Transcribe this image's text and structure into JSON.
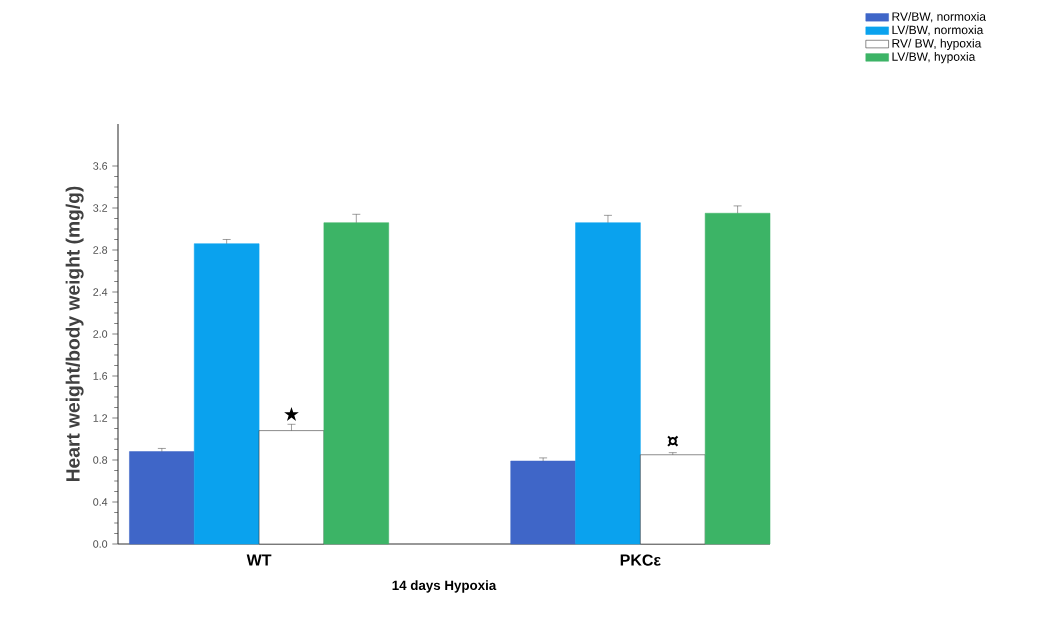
{
  "chart_data": {
    "type": "bar",
    "xlabel": "14 days Hypoxia",
    "ylabel": "Heart weight/body weight (mg/g)",
    "categories": [
      "WT",
      "PKCε"
    ],
    "series": [
      {
        "name": "RV/BW,  normoxia",
        "color": "#3f66c8",
        "values": [
          0.88,
          0.79
        ],
        "errors": [
          0.03,
          0.03
        ]
      },
      {
        "name": "LV/BW,  normoxia",
        "color": "#0aa2ee",
        "values": [
          2.86,
          3.06
        ],
        "errors": [
          0.04,
          0.07
        ]
      },
      {
        "name": "RV/ BW,  hypoxia",
        "color": "#ffffff",
        "values": [
          1.08,
          0.85
        ],
        "errors": [
          0.06,
          0.02
        ]
      },
      {
        "name": "LV/BW,  hypoxia",
        "color": "#3cb466",
        "values": [
          3.06,
          3.15
        ],
        "errors": [
          0.08,
          0.07
        ]
      }
    ],
    "ylim": [
      0,
      4.0
    ],
    "yticks": [
      {
        "value": 0,
        "label": "0.0"
      },
      {
        "value": 0.4,
        "label": "0.4"
      },
      {
        "value": 0.8,
        "label": "0.8"
      },
      {
        "value": 1.2,
        "label": "1.2"
      },
      {
        "value": 1.6,
        "label": "1.6"
      },
      {
        "value": 2.0,
        "label": "2.0"
      },
      {
        "value": 2.4,
        "label": "2.4"
      },
      {
        "value": 2.8,
        "label": "2.8"
      },
      {
        "value": 3.2,
        "label": "3.2"
      },
      {
        "value": 3.6,
        "label": "3.6"
      }
    ],
    "annotations": [
      {
        "text": "★",
        "x": "WT",
        "y": 1.25
      },
      {
        "text": "¤",
        "x": "PKCε",
        "y": 1.0
      }
    ],
    "legend": "top right",
    "grid": false
  }
}
